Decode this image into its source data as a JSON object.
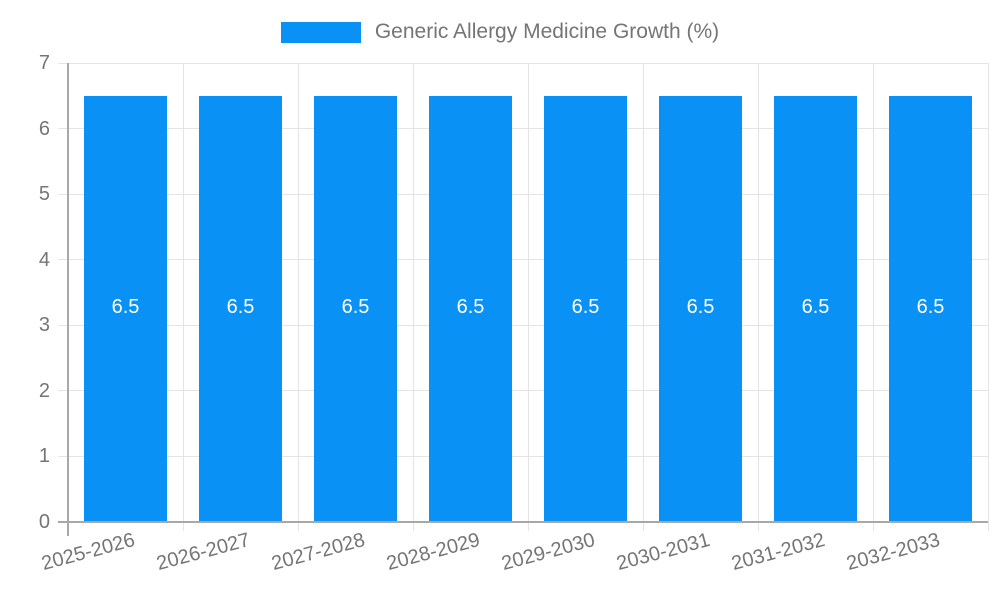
{
  "chart_data": {
    "type": "bar",
    "title": "Generic Allergy Medicine Growth (%)",
    "legend": [
      {
        "label": "Generic Allergy Medicine Growth (%)",
        "color": "#0991f5"
      }
    ],
    "legend_position": "top",
    "categories": [
      "2025-2026",
      "2026-2027",
      "2027-2028",
      "2028-2029",
      "2029-2030",
      "2030-2031",
      "2031-2032",
      "2032-2033"
    ],
    "values": [
      6.5,
      6.5,
      6.5,
      6.5,
      6.5,
      6.5,
      6.5,
      6.5
    ],
    "value_labels": [
      "6.5",
      "6.5",
      "6.5",
      "6.5",
      "6.5",
      "6.5",
      "6.5",
      "6.5"
    ],
    "xlabel": "",
    "ylabel": "",
    "ylim": [
      0,
      7
    ],
    "yticks": [
      0,
      1,
      2,
      3,
      4,
      5,
      6,
      7
    ],
    "grid": true,
    "colors": {
      "bar": "#0991f5",
      "axis": "#a8a8a8",
      "grid": "#e4e4e4",
      "text": "#757575",
      "value_label": "#ffffff",
      "background": "#ffffff"
    }
  }
}
